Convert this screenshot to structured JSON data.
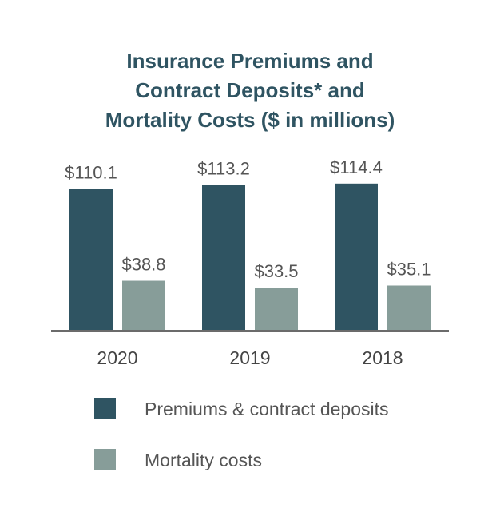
{
  "chart_data": {
    "type": "bar",
    "title_lines": [
      "Insurance Premiums and",
      "Contract Deposits* and",
      "Mortality Costs ($ in millions)"
    ],
    "categories": [
      "2020",
      "2019",
      "2018"
    ],
    "series": [
      {
        "name": "Premiums & contract deposits",
        "values": [
          110.1,
          113.2,
          114.4
        ],
        "labels": [
          "$110.1",
          "$113.2",
          "$114.4"
        ],
        "color": "#2f5462"
      },
      {
        "name": "Mortality costs",
        "values": [
          38.8,
          33.5,
          35.1
        ],
        "labels": [
          "$38.8",
          "$33.5",
          "$35.1"
        ],
        "color": "#879d99"
      }
    ],
    "xlabel": "",
    "ylabel": "",
    "ylim": [
      0,
      125
    ],
    "grid": false,
    "legend_position": "bottom"
  },
  "colors": {
    "axis": "#6b6b6b",
    "value_text": "#555555",
    "year_text": "#444444"
  }
}
